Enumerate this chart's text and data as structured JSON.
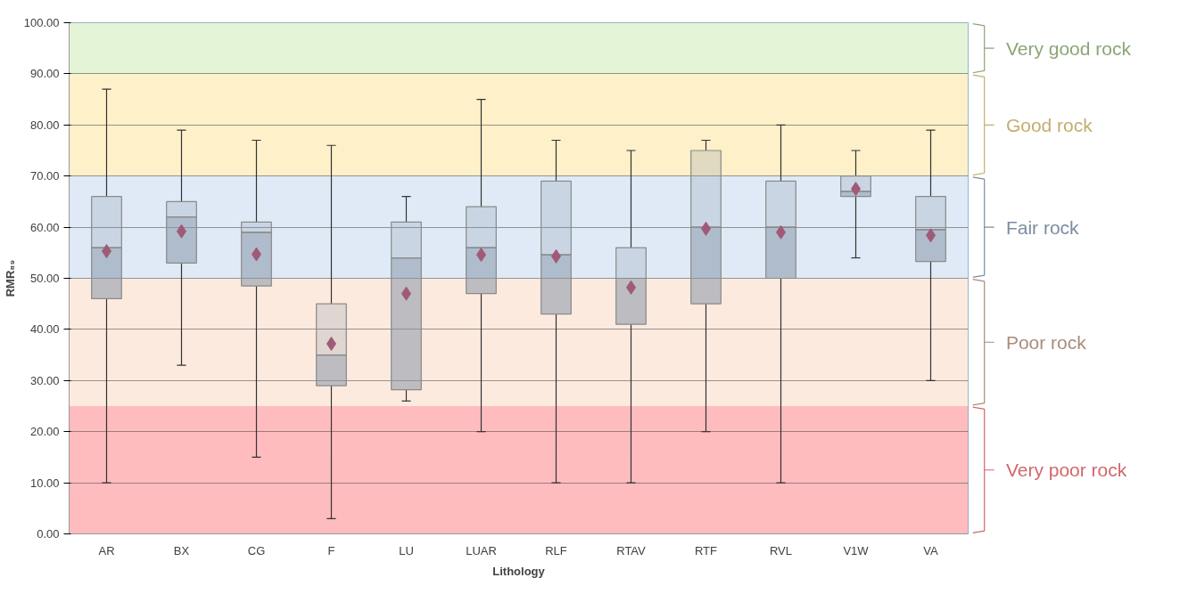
{
  "chart_data": {
    "type": "box",
    "xlabel": "Lithology",
    "ylabel": "RMR₈₉",
    "categories": [
      "AR",
      "BX",
      "CG",
      "F",
      "LU",
      "LUAR",
      "RLF",
      "RTAV",
      "RTF",
      "RVL",
      "V1W",
      "VA"
    ],
    "series": [
      {
        "color": "#8796a8",
        "boxes": [
          {
            "low": 10,
            "q1": 46,
            "median": 56,
            "q3": 66,
            "high": 87,
            "mean": 55.3
          },
          {
            "low": 33,
            "q1": 53,
            "median": 62,
            "q3": 65,
            "high": 79,
            "mean": 59.2
          },
          {
            "low": 15,
            "q1": 48.5,
            "median": 59,
            "q3": 61,
            "high": 77,
            "mean": 54.7
          },
          {
            "low": 3,
            "q1": 29,
            "median": 35,
            "q3": 45,
            "high": 76,
            "mean": 37.2
          },
          {
            "low": 26,
            "q1": 28.2,
            "median": 54,
            "q3": 61,
            "high": 66,
            "mean": 47
          },
          {
            "low": 20,
            "q1": 47,
            "median": 56,
            "q3": 64,
            "high": 85,
            "mean": 54.6
          },
          {
            "low": 10,
            "q1": 43,
            "median": 54.6,
            "q3": 69,
            "high": 77,
            "mean": 54.3
          },
          {
            "low": 10,
            "q1": 41,
            "median": 50,
            "q3": 56,
            "high": 75,
            "mean": 48.2
          },
          {
            "low": 20,
            "q1": 45,
            "median": 60,
            "q3": 75,
            "high": 77,
            "mean": 59.7
          },
          {
            "low": 10,
            "q1": 50,
            "median": 60,
            "q3": 69,
            "high": 80,
            "mean": 59
          },
          {
            "low": 54,
            "q1": 66,
            "median": 67,
            "q3": 70,
            "high": 75,
            "mean": 67.5
          },
          {
            "low": 30,
            "q1": 53.3,
            "median": 59.5,
            "q3": 66,
            "high": 79,
            "mean": 58.4
          }
        ]
      }
    ],
    "marker": "diamond",
    "ylim": [
      0,
      100
    ],
    "yticks": [
      {
        "value": 0,
        "label": "0.00"
      },
      {
        "value": 10,
        "label": "10.00"
      },
      {
        "value": 20,
        "label": "20.00"
      },
      {
        "value": 30,
        "label": "30.00"
      },
      {
        "value": 40,
        "label": "40.00"
      },
      {
        "value": 50,
        "label": "50.00"
      },
      {
        "value": 60,
        "label": "60.00"
      },
      {
        "value": 70,
        "label": "70.00"
      },
      {
        "value": 80,
        "label": "80.00"
      },
      {
        "value": 90,
        "label": "90.00"
      },
      {
        "value": 100,
        "label": "100.00"
      }
    ],
    "grid": "y",
    "bands": [
      {
        "axis": "y",
        "from": 90,
        "to": 100,
        "label": "Very good rock",
        "color": "#e4f4d6"
      },
      {
        "axis": "y",
        "from": 70,
        "to": 90,
        "label": "Good rock",
        "color": "#fef0c8"
      },
      {
        "axis": "y",
        "from": 50,
        "to": 70,
        "label": "Fair rock",
        "color": "#dfeaf6"
      },
      {
        "axis": "y",
        "from": 25,
        "to": 50,
        "label": "Poor rock",
        "color": "#fdeadf"
      },
      {
        "axis": "y",
        "from": 0,
        "to": 25,
        "label": "Very poor rock",
        "color": "#ffbcbf"
      }
    ]
  }
}
